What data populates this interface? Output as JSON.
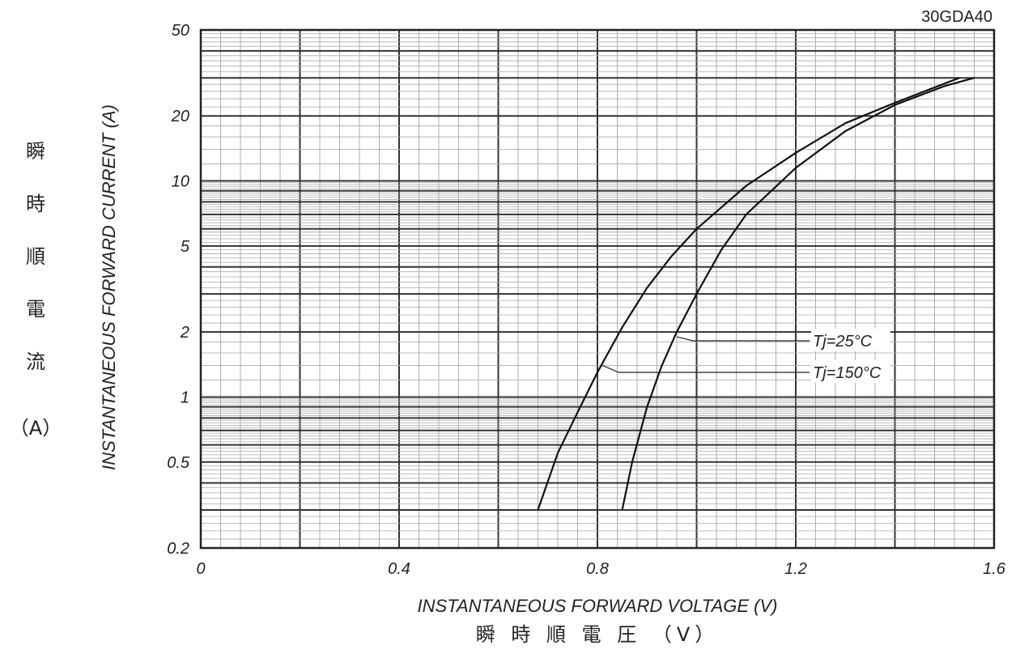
{
  "chart_data": {
    "type": "line",
    "part_number": "30GDA40",
    "xlabel": "INSTANTANEOUS FORWARD VOLTAGE (V)",
    "xlabel_jp": "瞬 時 順 電 圧 （V）",
    "ylabel": "INSTANTANEOUS FORWARD CURRENT (A)",
    "ylabel_jp_chars": [
      "瞬",
      "時",
      "順",
      "電",
      "流"
    ],
    "ylabel_jp_unit": "（A）",
    "xlim": [
      0,
      1.6
    ],
    "ylim": [
      0.2,
      50
    ],
    "y_scale": "log",
    "grid": true,
    "x_ticks": [
      {
        "value": 0,
        "label": "0"
      },
      {
        "value": 0.4,
        "label": "0.4"
      },
      {
        "value": 0.8,
        "label": "0.8"
      },
      {
        "value": 1.2,
        "label": "1.2"
      },
      {
        "value": 1.6,
        "label": "1.6"
      }
    ],
    "y_ticks": [
      {
        "value": 0.2,
        "label": "0.2"
      },
      {
        "value": 0.5,
        "label": "0.5"
      },
      {
        "value": 1,
        "label": "1"
      },
      {
        "value": 2,
        "label": "2"
      },
      {
        "value": 5,
        "label": "5"
      },
      {
        "value": 10,
        "label": "10"
      },
      {
        "value": 20,
        "label": "20"
      },
      {
        "value": 50,
        "label": "50"
      }
    ],
    "series": [
      {
        "name": "Tj=25°C",
        "x": [
          0.85,
          0.87,
          0.9,
          0.93,
          0.96,
          1.0,
          1.05,
          1.1,
          1.2,
          1.3,
          1.4,
          1.5,
          1.56
        ],
        "y": [
          0.3,
          0.5,
          0.9,
          1.4,
          2.0,
          3.0,
          4.8,
          7.0,
          11.5,
          17.0,
          22.5,
          27.5,
          30
        ],
        "label_anchor": {
          "x": 0.96,
          "y": 1.9
        }
      },
      {
        "name": "Tj=150°C",
        "x": [
          0.68,
          0.72,
          0.76,
          0.8,
          0.85,
          0.9,
          0.95,
          1.0,
          1.1,
          1.2,
          1.3,
          1.4,
          1.53
        ],
        "y": [
          0.3,
          0.55,
          0.85,
          1.3,
          2.1,
          3.2,
          4.5,
          6.0,
          9.5,
          13.5,
          18.5,
          23.0,
          30
        ],
        "label_anchor": {
          "x": 0.81,
          "y": 1.4
        }
      }
    ]
  }
}
